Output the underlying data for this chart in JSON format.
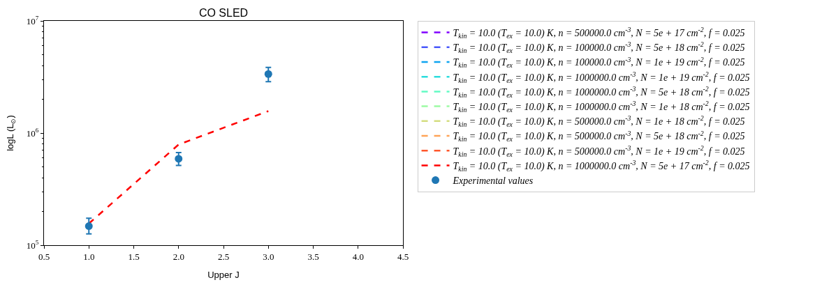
{
  "chart_data": {
    "type": "line",
    "title": "CO SLED",
    "xlabel": "Upper J",
    "ylabel": "logL (L$_{⊙}$)",
    "x": [
      1,
      2,
      3
    ],
    "xlim": [
      0.5,
      4.5
    ],
    "xticks": [
      0.5,
      {
        "value": 1,
        "label": "1.0"
      },
      1.5,
      {
        "value": 2,
        "label": "2.0"
      },
      2.5,
      {
        "value": 3,
        "label": "3.0"
      },
      3.5,
      {
        "value": 4,
        "label": "4.0"
      },
      4.5
    ],
    "ylim": [
      100000,
      10000000
    ],
    "yticks": [
      {
        "value": 100000,
        "label": "10$^{5}$"
      },
      {
        "value": 1000000,
        "label": "10$^{6}$"
      },
      {
        "value": 10000000,
        "label": "10$^{7}$"
      }
    ],
    "log": "y",
    "legend": "right",
    "line_style": "dashed",
    "series": [
      {
        "name": "T$_{kin}$ = 10.0 (T$_{ex}$ = 10.0) K, n = 500000.0 cm$^{-3}$, N = 5e + 17 cm$^{-2}$, f = 0.025",
        "color": "#8000ff",
        "values": [
          null,
          null,
          null
        ]
      },
      {
        "name": "T$_{kin}$ = 10.0 (T$_{ex}$ = 10.0) K, n = 100000.0 cm$^{-3}$, N = 5e + 18 cm$^{-2}$, f = 0.025",
        "color": "#4757fb",
        "values": [
          null,
          null,
          null
        ]
      },
      {
        "name": "T$_{kin}$ = 10.0 (T$_{ex}$ = 10.0) K, n = 100000.0 cm$^{-3}$, N = 1e + 19 cm$^{-2}$, f = 0.025",
        "color": "#0ea4f0",
        "values": [
          null,
          null,
          null
        ]
      },
      {
        "name": "T$_{kin}$ = 10.0 (T$_{ex}$ = 10.0) K, n = 1000000.0 cm$^{-3}$, N = 1e + 19 cm$^{-2}$, f = 0.025",
        "color": "#2bdddd",
        "values": [
          null,
          null,
          null
        ]
      },
      {
        "name": "T$_{kin}$ = 10.0 (T$_{ex}$ = 10.0) K, n = 1000000.0 cm$^{-3}$, N = 5e + 18 cm$^{-2}$, f = 0.025",
        "color": "#63fbc3",
        "values": [
          null,
          null,
          null
        ]
      },
      {
        "name": "T$_{kin}$ = 10.0 (T$_{ex}$ = 10.0) K, n = 1000000.0 cm$^{-3}$, N = 1e + 18 cm$^{-2}$, f = 0.025",
        "color": "#9cfba4",
        "values": [
          null,
          null,
          null
        ]
      },
      {
        "name": "T$_{kin}$ = 10.0 (T$_{ex}$ = 10.0) K, n = 500000.0 cm$^{-3}$, N = 1e + 18 cm$^{-2}$, f = 0.025",
        "color": "#d4dd80",
        "values": [
          null,
          null,
          null
        ]
      },
      {
        "name": "T$_{kin}$ = 10.0 (T$_{ex}$ = 10.0) K, n = 500000.0 cm$^{-3}$, N = 5e + 18 cm$^{-2}$, f = 0.025",
        "color": "#ffa457",
        "values": [
          null,
          null,
          null
        ]
      },
      {
        "name": "T$_{kin}$ = 10.0 (T$_{ex}$ = 10.0) K, n = 500000.0 cm$^{-3}$, N = 1e + 19 cm$^{-2}$, f = 0.025",
        "color": "#ff572c",
        "values": [
          null,
          null,
          null
        ]
      },
      {
        "name": "T$_{kin}$ = 10.0 (T$_{ex}$ = 10.0) K, n = 1000000.0 cm$^{-3}$, N = 5e + 17 cm$^{-2}$, f = 0.025",
        "color": "#ff0000",
        "values": [
          156000,
          790000,
          1570000
        ]
      },
      {
        "name": "Experimental values",
        "type": "scatter",
        "marker": "circle",
        "color": "#1f77b4",
        "values": [
          148000,
          590000,
          3360000
        ],
        "errors": [
          [
            126000,
            174000
          ],
          [
            515000,
            670000
          ],
          [
            2870000,
            3850000
          ]
        ]
      }
    ]
  }
}
